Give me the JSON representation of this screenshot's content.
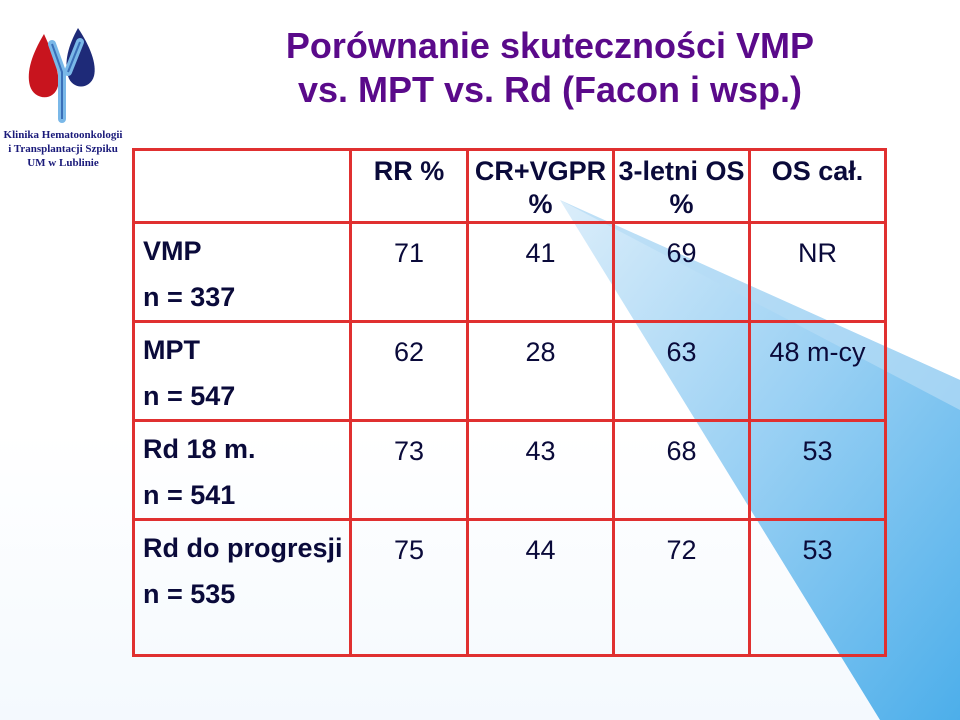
{
  "logo": {
    "caption_lines": [
      "Klinika Hematoonkologii",
      "i Transplantacji Szpiku",
      "UM w Lublinie"
    ]
  },
  "title_lines": [
    "Porównanie skuteczności VMP",
    "vs. MPT vs. Rd (Facon i wsp.)"
  ],
  "table": {
    "headers": [
      "",
      "RR %",
      "CR+VGPR %",
      "3-letni OS %",
      "OS cał."
    ],
    "rows": [
      {
        "name": "VMP",
        "n": "n = 337",
        "values": [
          "71",
          "41",
          "69",
          "NR"
        ]
      },
      {
        "name": "MPT",
        "n": "n = 547",
        "values": [
          "62",
          "28",
          "63",
          "48 m-cy"
        ]
      },
      {
        "name": "Rd 18 m.",
        "n": "n = 541",
        "values": [
          "73",
          "43",
          "68",
          "53"
        ]
      },
      {
        "name": "Rd do progresji",
        "n": "n = 535",
        "values": [
          "75",
          "44",
          "72",
          "53"
        ]
      }
    ]
  },
  "colors": {
    "title": "#5a0a8a",
    "table_border": "#e03030",
    "background_accent": "#5ab4ec",
    "logo_caption": "#1a1a7a"
  }
}
